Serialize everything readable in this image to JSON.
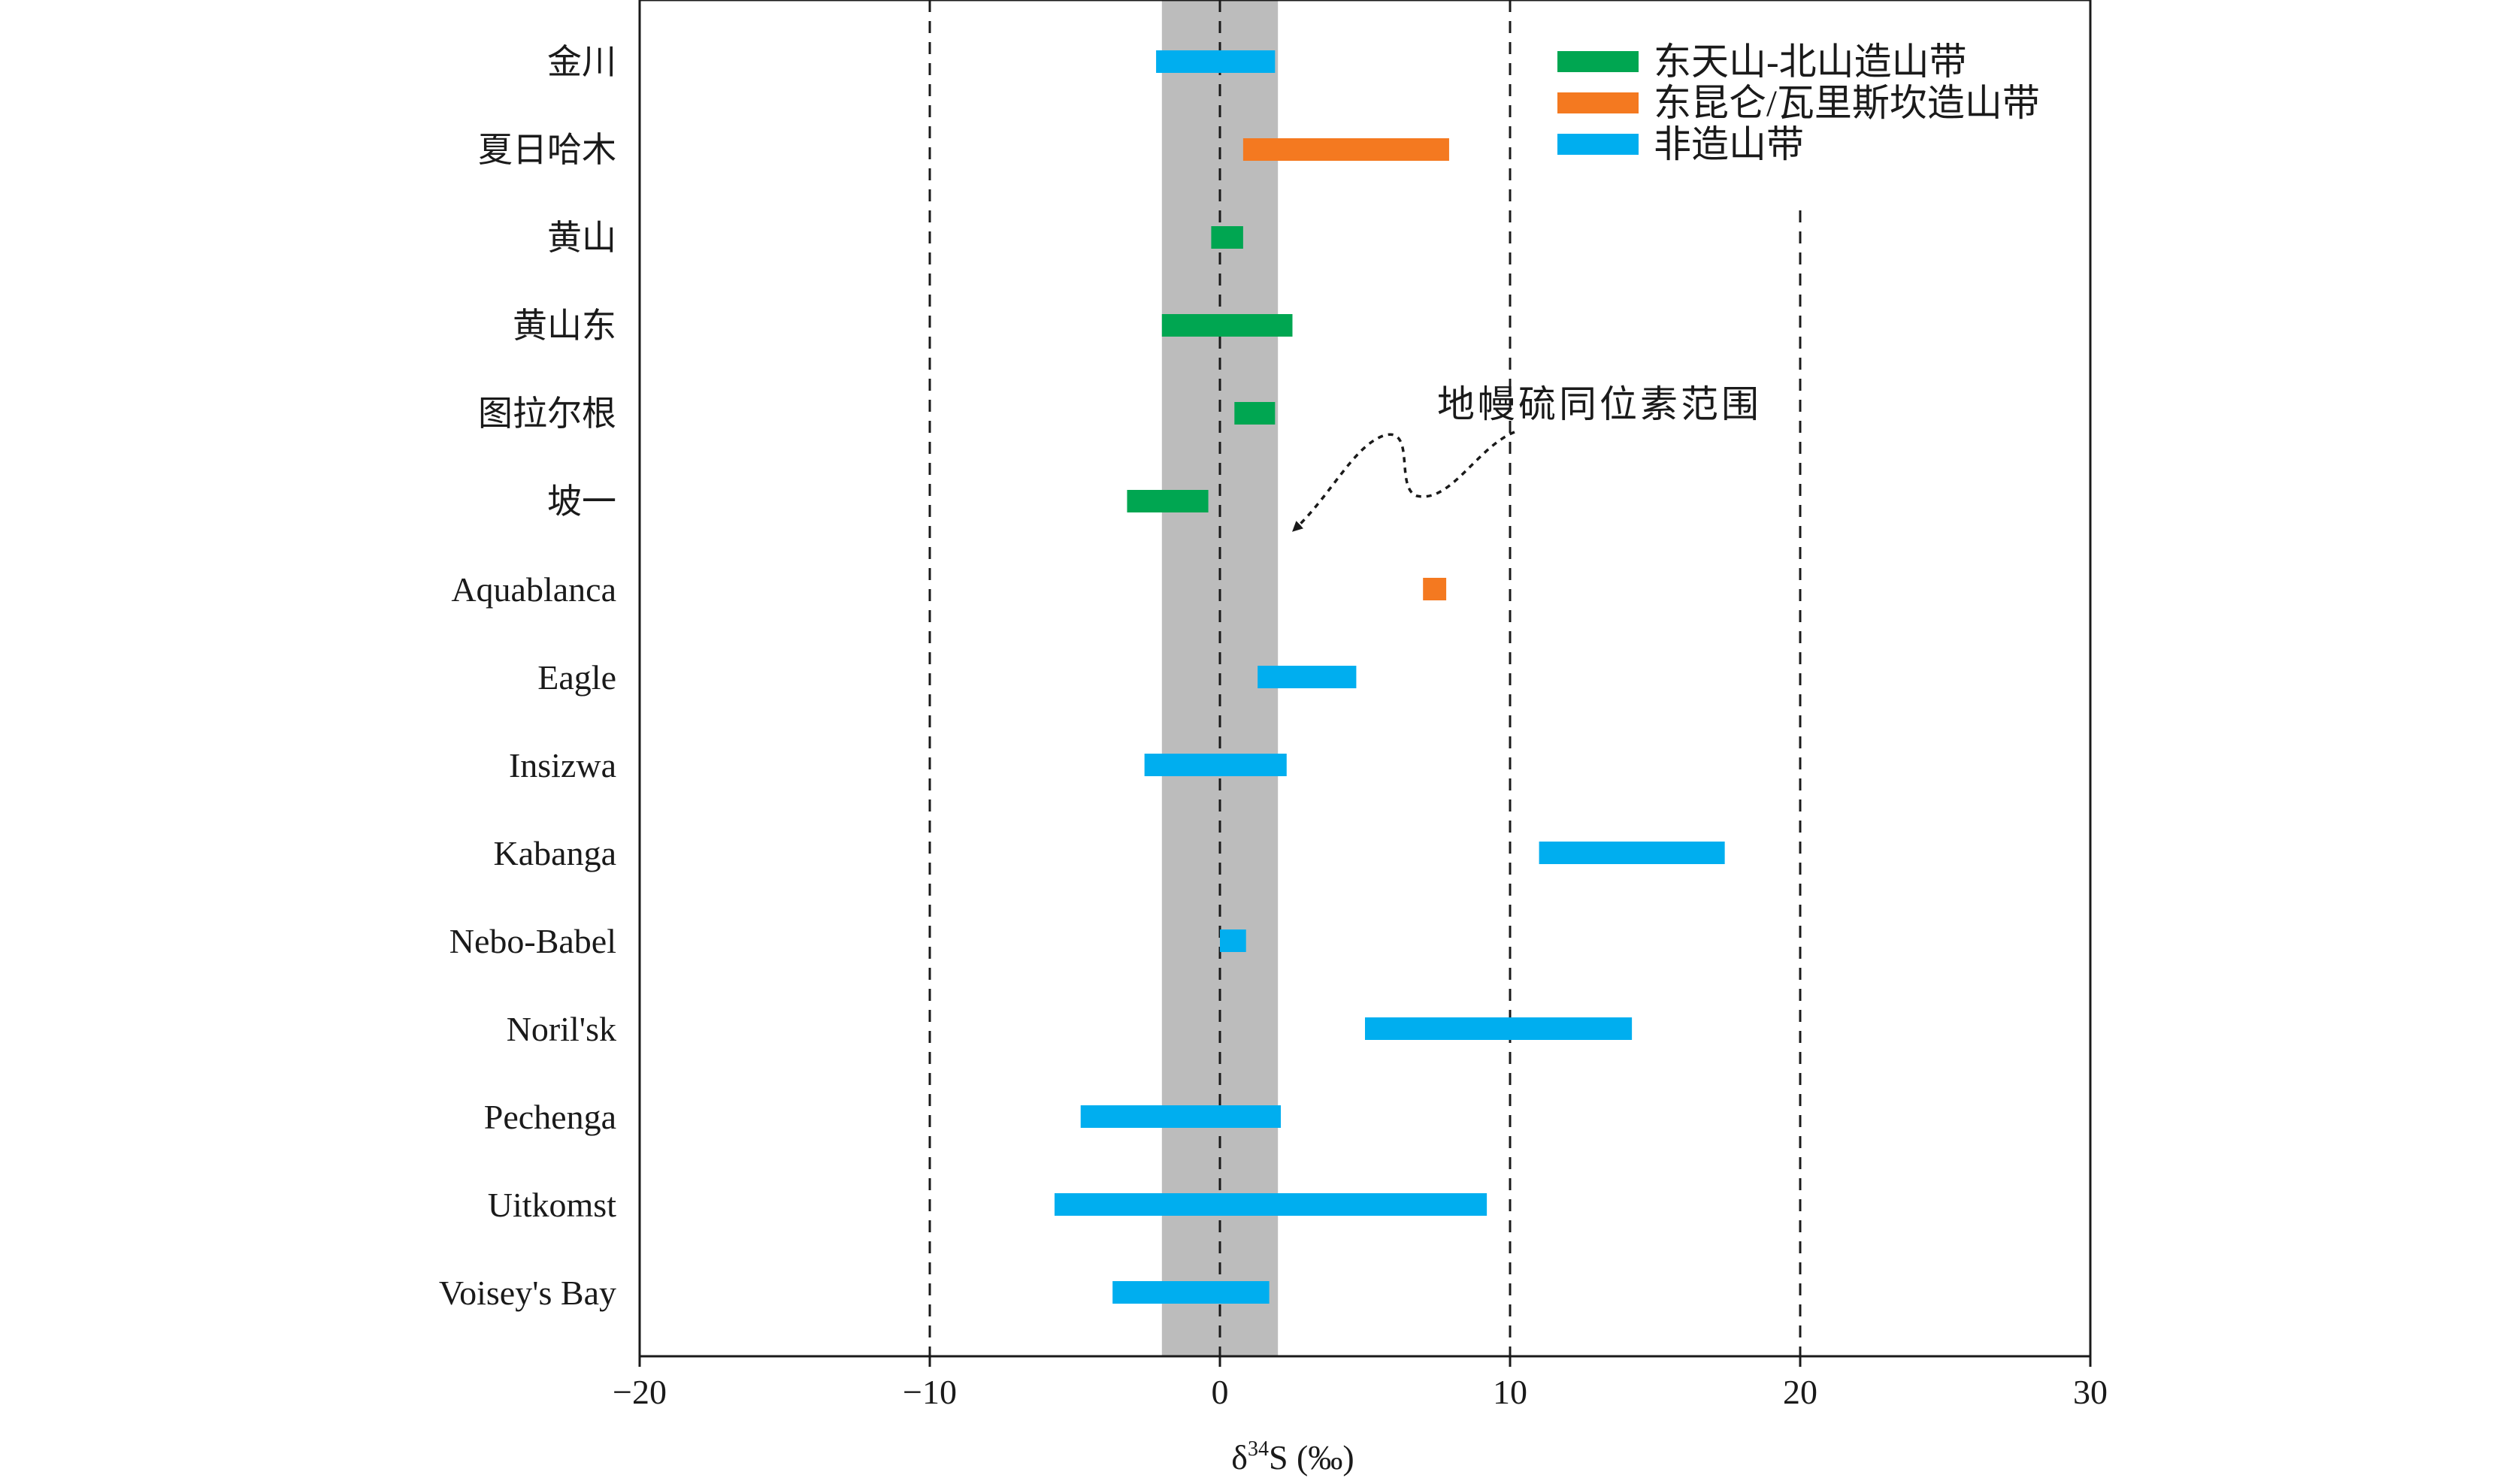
{
  "chart_data": {
    "type": "bar",
    "orientation": "horizontal-range",
    "xlabel_main": "δ",
    "xlabel_sup": "34",
    "xlabel_rest": "S (‰)",
    "xlim": [
      -20,
      30
    ],
    "xticks": [
      -20,
      -10,
      0,
      10,
      20,
      30
    ],
    "xtick_labels": [
      "−20",
      "−10",
      "0",
      "10",
      "20",
      "30"
    ],
    "gridlines_dashed": [
      -10,
      0,
      10,
      20
    ],
    "categories": [
      "金川",
      "夏日哈木",
      "黄山",
      "黄山东",
      "图拉尔根",
      "坡一",
      "Aquablanca",
      "Eagle",
      "Insizwa",
      "Kabanga",
      "Nebo-Babel",
      "Noril'sk",
      "Pechenga",
      "Uitkomst",
      "Voisey's Bay"
    ],
    "ranges": [
      {
        "category": "金川",
        "min": -2.2,
        "max": 1.9,
        "group": "非造山带"
      },
      {
        "category": "夏日哈木",
        "min": 0.8,
        "max": 7.9,
        "group": "东昆仑/瓦里斯坎造山带"
      },
      {
        "category": "黄山",
        "min": -0.3,
        "max": 0.8,
        "group": "东天山-北山造山带"
      },
      {
        "category": "黄山东",
        "min": -2.0,
        "max": 2.5,
        "group": "东天山-北山造山带"
      },
      {
        "category": "图拉尔根",
        "min": 0.5,
        "max": 1.9,
        "group": "东天山-北山造山带"
      },
      {
        "category": "坡一",
        "min": -3.2,
        "max": -0.4,
        "group": "东天山-北山造山带"
      },
      {
        "category": "Aquablanca",
        "min": 7.0,
        "max": 7.8,
        "group": "东昆仑/瓦里斯坎造山带"
      },
      {
        "category": "Eagle",
        "min": 1.3,
        "max": 4.7,
        "group": "非造山带"
      },
      {
        "category": "Insizwa",
        "min": -2.6,
        "max": 2.3,
        "group": "非造山带"
      },
      {
        "category": "Kabanga",
        "min": 11.0,
        "max": 17.4,
        "group": "非造山带"
      },
      {
        "category": "Nebo-Babel",
        "min": 0.0,
        "max": 0.9,
        "group": "非造山带"
      },
      {
        "category": "Noril'sk",
        "min": 5.0,
        "max": 14.2,
        "group": "非造山带"
      },
      {
        "category": "Pechenga",
        "min": -4.8,
        "max": 2.1,
        "group": "非造山带"
      },
      {
        "category": "Uitkomst",
        "min": -5.7,
        "max": 9.2,
        "group": "非造山带"
      },
      {
        "category": "Voisey's Bay",
        "min": -3.7,
        "max": 1.7,
        "group": "非造山带"
      }
    ],
    "legend": [
      {
        "name": "东天山-北山造山带",
        "color": "#00a651"
      },
      {
        "name": "东昆仑/瓦里斯坎造山带",
        "color": "#f47920"
      },
      {
        "name": "非造山带",
        "color": "#00aeef"
      }
    ],
    "legend_position": "top-right",
    "mantle_band": {
      "min": -2,
      "max": 2,
      "color": "#bcbcbc"
    },
    "annotation": "地幔硫同位素范围"
  }
}
